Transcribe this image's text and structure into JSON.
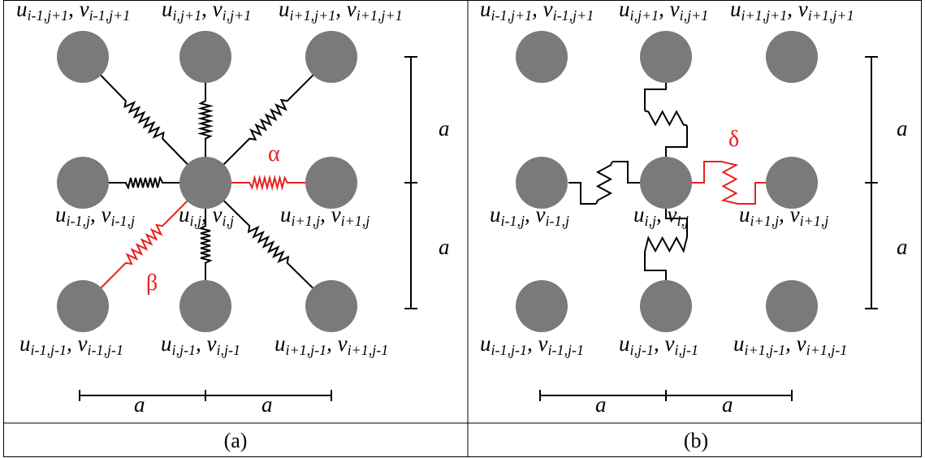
{
  "panels": [
    {
      "id": "a",
      "caption": "(a)",
      "spring_symbols": {
        "diagonal": "β",
        "horizontal": "α"
      },
      "labels": {
        "top_left": {
          "u": "u",
          "u_sub": "i-1,j+1",
          "v": "v",
          "v_sub": "i-1,j+1"
        },
        "top_mid": {
          "u": "u",
          "u_sub": "i,j+1",
          "v": "v",
          "v_sub": "i,j+1"
        },
        "top_right": {
          "u": "u",
          "u_sub": "i+1,j+1",
          "v": "v",
          "v_sub": "i+1,j+1"
        },
        "mid_left": {
          "u": "u",
          "u_sub": "i-1,j",
          "v": "v",
          "v_sub": "i-1,j"
        },
        "center": {
          "u": "u",
          "u_sub": "i,j",
          "v": "v",
          "v_sub": "i,j"
        },
        "mid_right": {
          "u": "u",
          "u_sub": "i+1,j",
          "v": "v",
          "v_sub": "i+1,j"
        },
        "bottom_left": {
          "u": "u",
          "u_sub": "i-1,j-1",
          "v": "v",
          "v_sub": "i-1,j-1"
        },
        "bottom_mid": {
          "u": "u",
          "u_sub": "i,j-1",
          "v": "v",
          "v_sub": "i,j-1"
        },
        "bottom_right": {
          "u": "u",
          "u_sub": "i+1,j-1",
          "v": "v",
          "v_sub": "i+1,j-1"
        }
      },
      "dimension_label": "a"
    },
    {
      "id": "b",
      "caption": "(b)",
      "spring_symbols": {
        "angular": "δ"
      },
      "labels": {
        "top_left": {
          "u": "u",
          "u_sub": "i-1,j+1",
          "v": "v",
          "v_sub": "i-1,j+1"
        },
        "top_mid": {
          "u": "u",
          "u_sub": "i,j+1",
          "v": "v",
          "v_sub": "i,j+1"
        },
        "top_right": {
          "u": "u",
          "u_sub": "i+1,j+1",
          "v": "v",
          "v_sub": "i+1,j+1"
        },
        "mid_left": {
          "u": "u",
          "u_sub": "i-1,j",
          "v": "v",
          "v_sub": "i-1,j"
        },
        "center": {
          "u": "u",
          "u_sub": "i,j",
          "v": "v",
          "v_sub": "i,j"
        },
        "mid_right": {
          "u": "u",
          "u_sub": "i+1,j",
          "v": "v",
          "v_sub": "i+1,j"
        },
        "bottom_left": {
          "u": "u",
          "u_sub": "i-1,j-1",
          "v": "v",
          "v_sub": "i-1,j-1"
        },
        "bottom_mid": {
          "u": "u",
          "u_sub": "i,j-1",
          "v": "v",
          "v_sub": "i,j-1"
        },
        "bottom_right": {
          "u": "u",
          "u_sub": "i+1,j-1",
          "v": "v",
          "v_sub": "i+1,j-1"
        }
      },
      "dimension_label": "a"
    }
  ],
  "colors": {
    "node": "#7a7a7a",
    "highlight": "#e8201f",
    "line": "#000000"
  }
}
